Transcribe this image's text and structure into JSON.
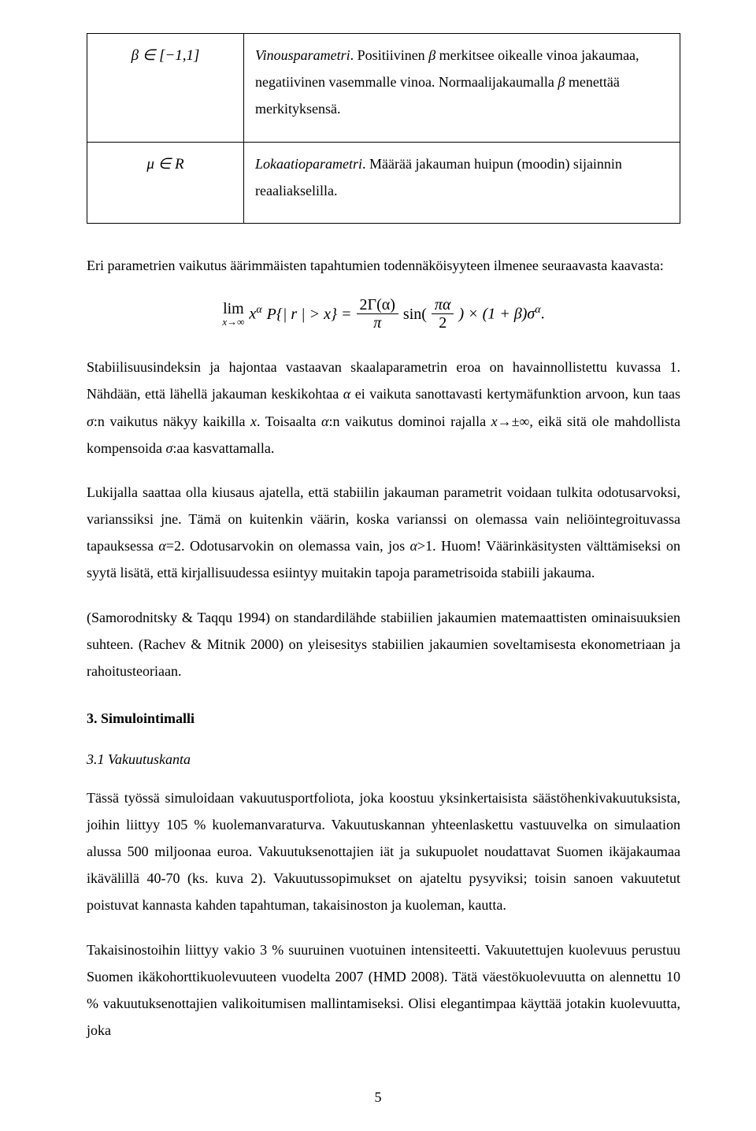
{
  "table": {
    "rows": [
      {
        "symbol_html": "β ∈ [−1,1]",
        "desc": "Vinousparametri. Positiivinen β merkitsee oikealle vinoa jakaumaa, negatiivinen vasemmalle vinoa. Normaalijakaumalla β menettää merkityksensä."
      },
      {
        "symbol_html": "μ ∈ R",
        "desc": "Lokaatioparametri. Määrää jakauman huipun (moodin) sijainnin reaaliakselilla."
      }
    ]
  },
  "lead": "Eri parametrien vaikutus äärimmäisten tapahtumien todennäköisyyteen ilmenee seuraavasta kaavasta:",
  "formula": {
    "lim_top": "lim",
    "lim_bot": "x→∞",
    "lhs_pre": "x",
    "lhs_sup": "α",
    "lhs_pr": "P{| r | > x} =",
    "frac1_num": "2Γ(α)",
    "frac1_den": "π",
    "mid": "sin(",
    "frac2_num": "πα",
    "frac2_den": "2",
    "mid2": ") × (1 + β)σ",
    "tail_sup": "α",
    "tail_dot": "."
  },
  "p1": "Stabiilisuusindeksin ja hajontaa vastaavan skaalaparametrin eroa on havainnollistettu kuvassa 1. Nähdään, että lähellä jakauman keskikohtaa α ei vaikuta sanottavasti kertymäfunktion arvoon, kun taas σ:n vaikutus näkyy kaikilla x. Toisaalta α:n vaikutus dominoi rajalla x→±∞, eikä sitä ole mahdollista kompensoida σ:aa kasvattamalla.",
  "p2": "Lukijalla saattaa olla kiusaus ajatella, että stabiilin jakauman parametrit voidaan tulkita odotusarvoksi, varianssiksi jne. Tämä on kuitenkin väärin, koska varianssi on olemassa vain neliöintegroituvassa tapauksessa α=2. Odotusarvokin on olemassa vain, jos α>1. Huom! Väärinkäsitysten välttämiseksi on syytä lisätä, että kirjallisuudessa esiintyy muitakin tapoja parametrisoida stabiili jakauma.",
  "p3": "(Samorodnitsky & Taqqu 1994) on standardilähde stabiilien jakaumien matemaattisten ominaisuuksien suhteen. (Rachev & Mitnik 2000) on yleisesitys stabiilien jakaumien soveltamisesta ekonometriaan ja rahoitusteoriaan.",
  "sec3_title": "3. Simulointimalli",
  "sec3_sub": "3.1 Vakuutuskanta",
  "p4": "Tässä työssä simuloidaan vakuutusportfoliota, joka koostuu yksinkertaisista säästöhenkivakuutuksista, joihin liittyy 105 % kuolemanvaraturva. Vakuutuskannan yhteenlaskettu vastuuvelka on simulaation alussa 500 miljoonaa euroa. Vakuutuksenottajien iät ja sukupuolet noudattavat Suomen ikäjakaumaa ikävälillä 40-70 (ks. kuva 2). Vakuutussopimukset on ajateltu pysyviksi; toisin sanoen vakuutetut poistuvat kannasta kahden tapahtuman, takaisinoston ja kuoleman, kautta.",
  "p5": "Takaisinostoihin liittyy vakio 3 % suuruinen vuotuinen intensiteetti. Vakuutettujen kuolevuus perustuu Suomen ikäkohorttikuolevuuteen vuodelta 2007 (HMD 2008). Tätä väestökuolevuutta on alennettu 10 % vakuutuksenottajien valikoitumisen mallintamiseksi. Olisi elegantimpaa käyttää jotakin kuolevuutta, joka",
  "page_number": "5"
}
